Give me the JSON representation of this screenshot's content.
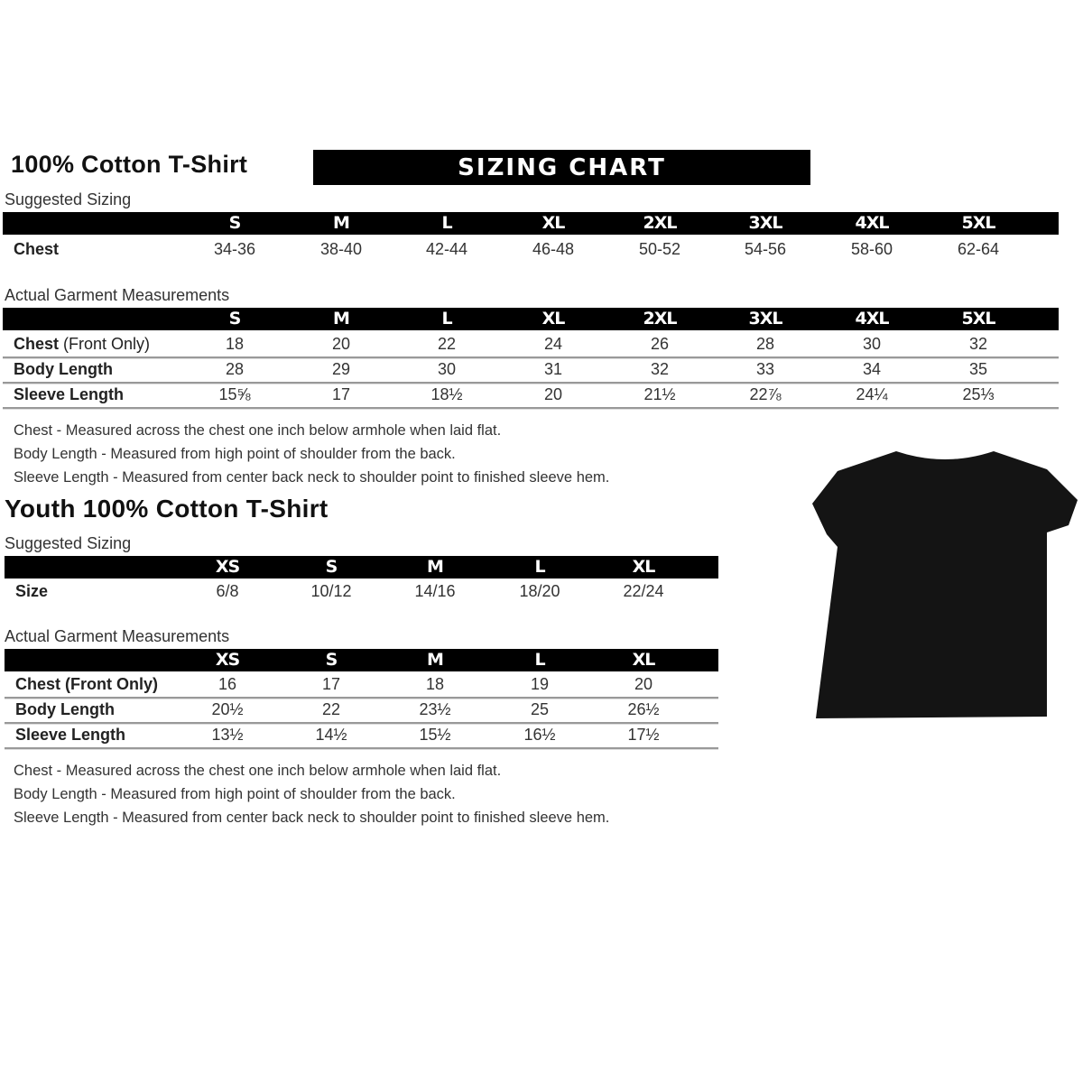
{
  "adult": {
    "title": "100% Cotton T-Shirt",
    "banner": "SIZING CHART",
    "suggested_label": "Suggested Sizing",
    "sizes": [
      "S",
      "M",
      "L",
      "XL",
      "2XL",
      "3XL",
      "4XL",
      "5XL"
    ],
    "chest_label": "Chest",
    "chest": [
      "34-36",
      "38-40",
      "42-44",
      "46-48",
      "50-52",
      "54-56",
      "58-60",
      "62-64"
    ],
    "actual_label": "Actual Garment Measurements",
    "rows": [
      {
        "label": "Chest",
        "label_suffix": "(Front Only)",
        "values": [
          "18",
          "20",
          "22",
          "24",
          "26",
          "28",
          "30",
          "32"
        ]
      },
      {
        "label": "Body Length",
        "label_suffix": "",
        "values": [
          "28",
          "29",
          "30",
          "31",
          "32",
          "33",
          "34",
          "35"
        ]
      },
      {
        "label": "Sleeve Length",
        "label_suffix": "",
        "values": [
          "15⅝",
          "17",
          "18½",
          "20",
          "21½",
          "22⅞",
          "24¼",
          "25⅓"
        ]
      }
    ],
    "notes": [
      "Chest - Measured across the chest one inch below armhole when laid flat.",
      "Body Length - Measured from high point of shoulder from the back.",
      "Sleeve Length - Measured from center back neck to shoulder point to finished sleeve hem."
    ]
  },
  "youth": {
    "title": "Youth 100% Cotton T-Shirt",
    "suggested_label": "Suggested Sizing",
    "sizes": [
      "XS",
      "S",
      "M",
      "L",
      "XL"
    ],
    "size_label": "Size",
    "size_values": [
      "6/8",
      "10/12",
      "14/16",
      "18/20",
      "22/24"
    ],
    "actual_label": "Actual Garment Measurements",
    "rows": [
      {
        "label": "Chest (Front Only)",
        "label_suffix": "",
        "values": [
          "16",
          "17",
          "18",
          "19",
          "20"
        ]
      },
      {
        "label": "Body Length",
        "label_suffix": "",
        "values": [
          "20½",
          "22",
          "23½",
          "25",
          "26½"
        ]
      },
      {
        "label": "Sleeve Length",
        "label_suffix": "",
        "values": [
          "13½",
          "14½",
          "15½",
          "16½",
          "17½"
        ]
      }
    ],
    "notes": [
      "Chest - Measured across the chest one inch below armhole when laid flat.",
      "Body Length - Measured from high point of shoulder from the back.",
      "Sleeve Length - Measured from center back neck to shoulder point to finished sleeve hem."
    ]
  },
  "image": {
    "shirt_color": "#141414"
  }
}
